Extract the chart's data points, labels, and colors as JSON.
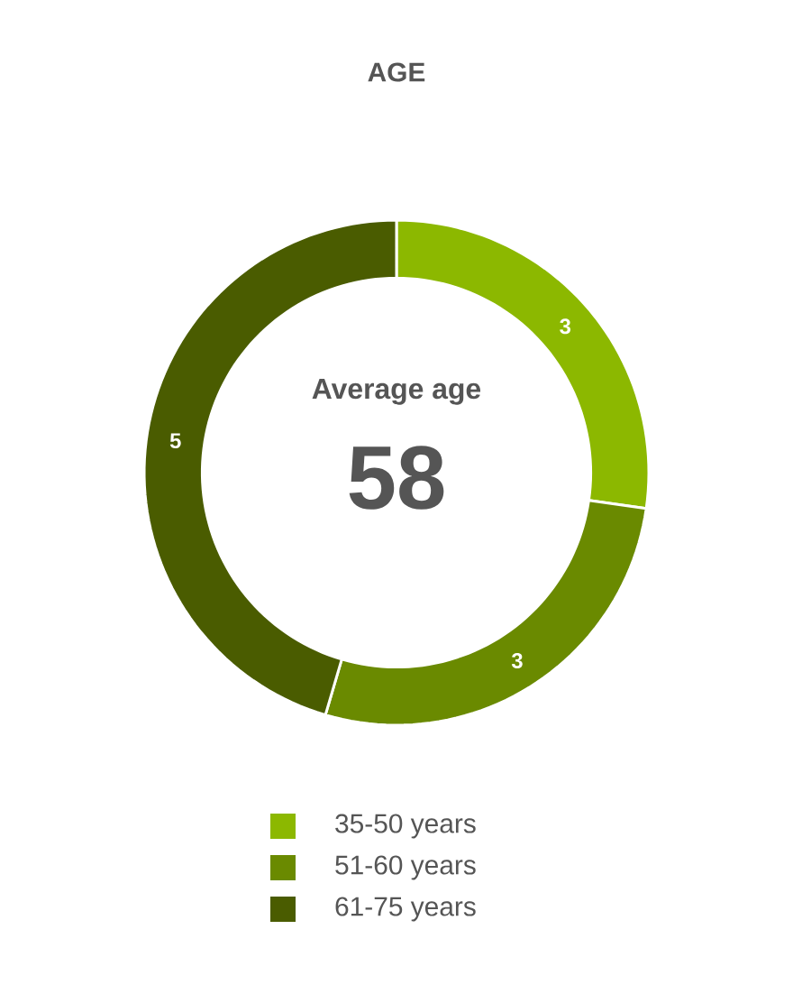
{
  "chart_data": {
    "type": "donut",
    "title": "AGE",
    "categories": [
      "35-50 years",
      "51-60 years",
      "61-75 years"
    ],
    "values": [
      3,
      3,
      5
    ],
    "colors": [
      "#8cb800",
      "#6a8a00",
      "#4a5c00"
    ],
    "data_labels": true,
    "legend": "bottom",
    "annotations": [
      "Average age",
      "58"
    ]
  }
}
